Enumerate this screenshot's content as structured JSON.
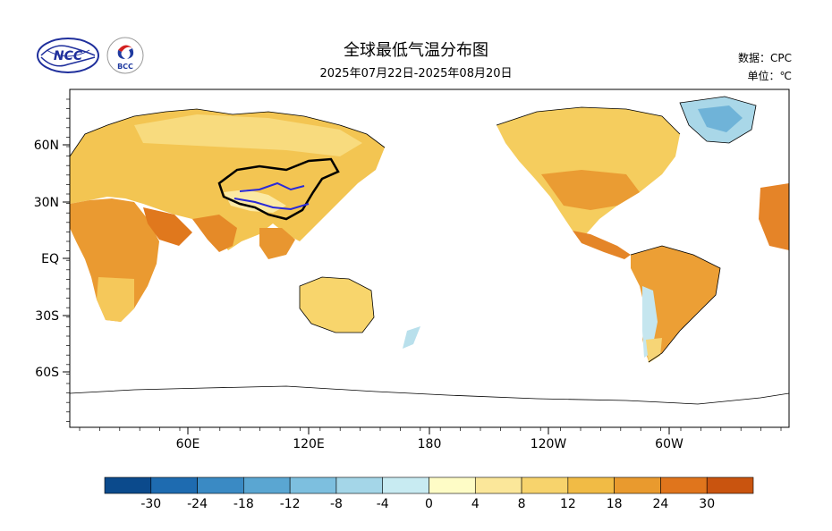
{
  "header": {
    "title": "全球最低气温分布图",
    "subtitle": "2025年07月22日-2025年08月20日",
    "source_label": "数据：CPC",
    "unit_label": "单位：℃"
  },
  "logos": [
    {
      "name": "NCC",
      "text": "NCC"
    },
    {
      "name": "BCC",
      "text": "BCC"
    }
  ],
  "map": {
    "lat_labels": [
      "60N",
      "30N",
      "EQ",
      "30S",
      "60S"
    ],
    "lon_labels": [
      "60E",
      "120E",
      "180",
      "120W",
      "60W"
    ]
  },
  "legend": {
    "ticks": [
      "-30",
      "-24",
      "-18",
      "-12",
      "-8",
      "-4",
      "0",
      "4",
      "8",
      "12",
      "18",
      "24",
      "30"
    ],
    "colors": [
      "#0b4a8c",
      "#1e6bb0",
      "#3a8ac4",
      "#5aa6d2",
      "#7dbfdf",
      "#a4d6e8",
      "#c8ebf2",
      "#fefcc6",
      "#fbe79a",
      "#f7d36c",
      "#f1bb45",
      "#e99a2e",
      "#e0751c",
      "#c9540f"
    ]
  }
}
